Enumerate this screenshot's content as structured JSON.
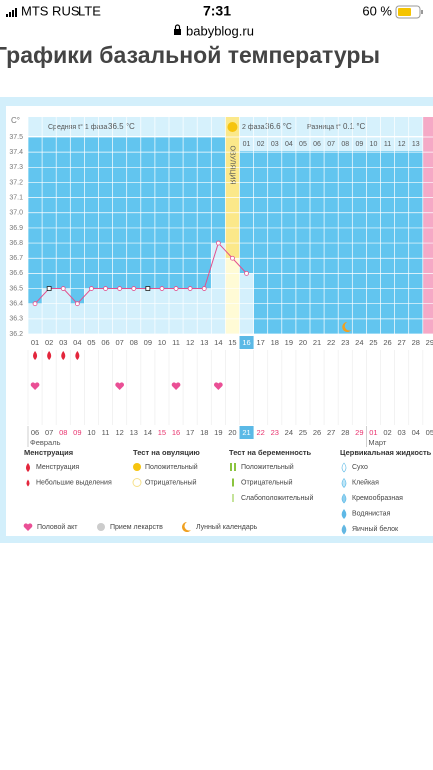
{
  "status": {
    "carrier": "MTS RUS",
    "network": "LTE",
    "time": "7:31",
    "battery": "60 %"
  },
  "url": "babyblog.ru",
  "page_title": "Графики базальной температуры",
  "chart_data": {
    "type": "line",
    "y_label": "C°",
    "phase1": {
      "label": "Средняя t° 1 фаза",
      "value": "36.5 °C"
    },
    "phase2": {
      "label": "2 фаза",
      "value": "36.6 °C"
    },
    "difference": {
      "label": "Разница t°",
      "value": "0.1 °C"
    },
    "ovulation_label": "ОВУЛЯЦИЯ",
    "categories": [
      "01",
      "02",
      "03",
      "04",
      "05",
      "06",
      "07",
      "08",
      "09",
      "10",
      "11",
      "12",
      "13",
      "14",
      "15",
      "16",
      "17",
      "18",
      "19",
      "20",
      "21",
      "22",
      "23",
      "24",
      "25",
      "26",
      "27",
      "28",
      "29"
    ],
    "values": [
      36.4,
      36.5,
      36.5,
      36.4,
      36.5,
      36.5,
      36.5,
      36.5,
      36.5,
      36.5,
      36.5,
      36.5,
      36.5,
      36.8,
      36.7,
      36.6,
      null,
      null,
      null,
      null,
      null,
      null,
      null,
      null,
      null,
      null,
      null,
      null,
      null
    ],
    "phase2_days": [
      "01",
      "02",
      "03",
      "04",
      "05",
      "06",
      "07",
      "08",
      "09",
      "10",
      "11",
      "12",
      "13"
    ],
    "ylim": [
      36.2,
      37.5
    ],
    "yticks": [
      36.2,
      36.3,
      36.4,
      36.5,
      36.6,
      36.7,
      36.8,
      36.9,
      {
        "value": 37,
        "label": "37.0"
      },
      37.1,
      37.2,
      37.3,
      37.4,
      37.5
    ],
    "color": "#e2508e",
    "square_markers": [
      1,
      8
    ],
    "today_index": 15,
    "ovulation_index": 14,
    "menstruation_days": [
      0,
      1,
      2,
      3
    ],
    "intercourse_days": [
      0,
      6,
      10,
      13
    ],
    "moon_day": 22,
    "dates": [
      "06",
      "07",
      "08",
      "09",
      "10",
      "11",
      "12",
      "13",
      "14",
      "15",
      "16",
      "17",
      "18",
      "19",
      "20",
      "21",
      "22",
      "23",
      "24",
      "25",
      "26",
      "27",
      "28",
      "29",
      "01",
      "02",
      "03",
      "04",
      "05"
    ],
    "red_dates": [
      2,
      3,
      9,
      10,
      16,
      17,
      23,
      24
    ],
    "months": [
      {
        "label": "Февраль",
        "index": 0
      },
      {
        "label": "Март",
        "index": 24
      }
    ]
  },
  "legend": {
    "groups": [
      {
        "title": "Менструация",
        "items": [
          "Менструация",
          "Небольшие выделения"
        ]
      },
      {
        "title": "Тест на овуляцию",
        "items": [
          "Положительный",
          "Отрицательный"
        ]
      },
      {
        "title": "Тест на беременность",
        "items": [
          "Положительный",
          "Отрицательный",
          "Слабоположительный"
        ]
      },
      {
        "title": "Цервикальная жидкость",
        "items": [
          "Сухо",
          "Клейкая",
          "Кремообразная",
          "Водянистая",
          "Яичный белок"
        ]
      }
    ],
    "extra": [
      "Половой акт",
      "Прием лекарств",
      "Лунный календарь"
    ]
  }
}
